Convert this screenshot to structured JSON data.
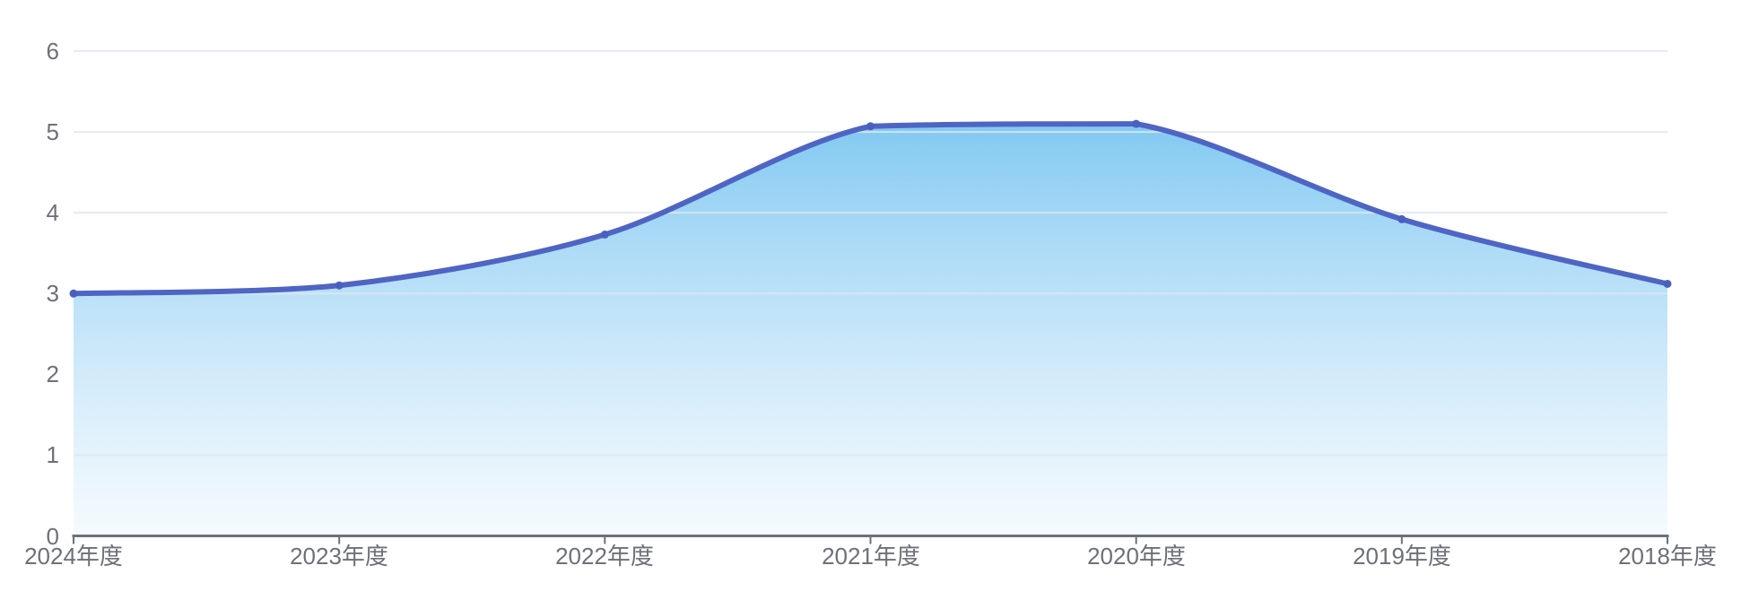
{
  "chart_data": {
    "type": "area",
    "title": "",
    "xlabel": "",
    "ylabel": "",
    "categories": [
      "2024年度",
      "2023年度",
      "2022年度",
      "2021年度",
      "2020年度",
      "2019年度",
      "2018年度"
    ],
    "series": [
      {
        "name": "value",
        "values": [
          3.0,
          3.1,
          3.73,
          5.07,
          5.1,
          3.92,
          3.12
        ]
      }
    ],
    "yticks": [
      "0",
      "1",
      "2",
      "3",
      "4",
      "5",
      "6"
    ],
    "ylim": [
      0,
      6
    ],
    "grid": true,
    "legend": false,
    "smooth": true,
    "colors": {
      "line": "#4e65c4",
      "point": "#4a60c0",
      "area_top": "rgba(95,185,238,0.78)",
      "area_bottom": "rgba(235,246,253,0.5)",
      "gridline": "#e0e6f1",
      "axis": "#6e7079",
      "label": "#6e7079",
      "background": "#ffffff"
    }
  }
}
